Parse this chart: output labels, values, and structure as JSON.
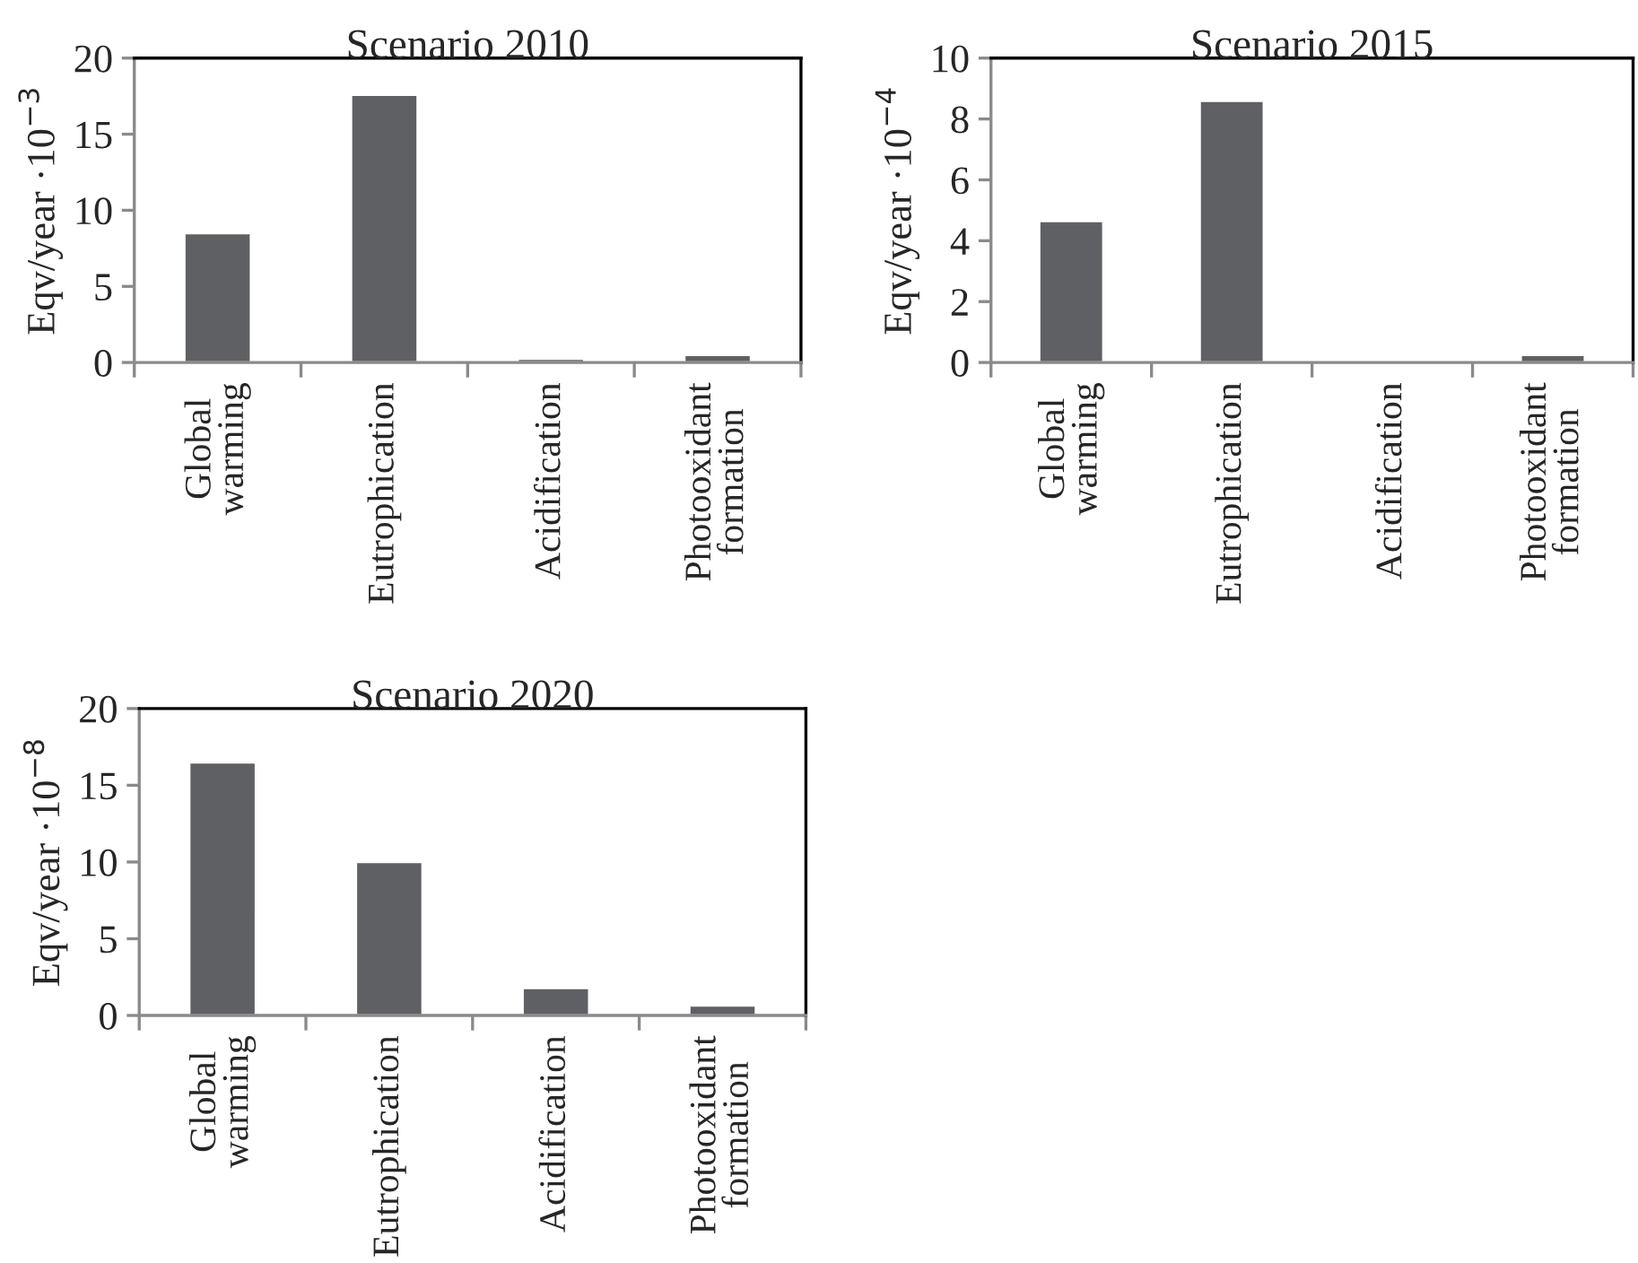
{
  "chart_data": [
    {
      "type": "bar",
      "title": "Scenario 2010",
      "ylabel": "Eqv/year ·10$^{−3}$",
      "categories": [
        "Global\nwarming",
        "Eutrophication",
        "Acidification",
        "Photooxidant\nformation"
      ],
      "values": [
        8.5,
        17.6,
        0.25,
        0.5
      ],
      "color": "#5f6063",
      "ylim": [
        0,
        20
      ],
      "yticks": [
        0,
        5,
        10,
        15,
        20
      ]
    },
    {
      "type": "bar",
      "title": "Scenario 2015",
      "ylabel": "Eqv/year ·10$^{−4}$",
      "categories": [
        "Global\nwarming",
        "Eutrophication",
        "Acidification",
        "Photooxidant\nformation"
      ],
      "values": [
        4.65,
        8.6,
        0.05,
        0.25
      ],
      "color": "#5f6063",
      "ylim": [
        0,
        10
      ],
      "yticks": [
        0,
        2,
        4,
        6,
        8,
        10
      ]
    },
    {
      "type": "bar",
      "title": "Scenario 2020",
      "ylabel": "Eqv/year ·10$^{−8}$",
      "categories": [
        "Global\nwarming",
        "Eutrophication",
        "Acidification",
        "Photooxidant\nformation"
      ],
      "values": [
        16.5,
        10.0,
        1.8,
        0.65
      ],
      "color": "#5f6063",
      "ylim": [
        0,
        20
      ],
      "yticks": [
        0,
        5,
        10,
        15,
        20
      ]
    }
  ]
}
